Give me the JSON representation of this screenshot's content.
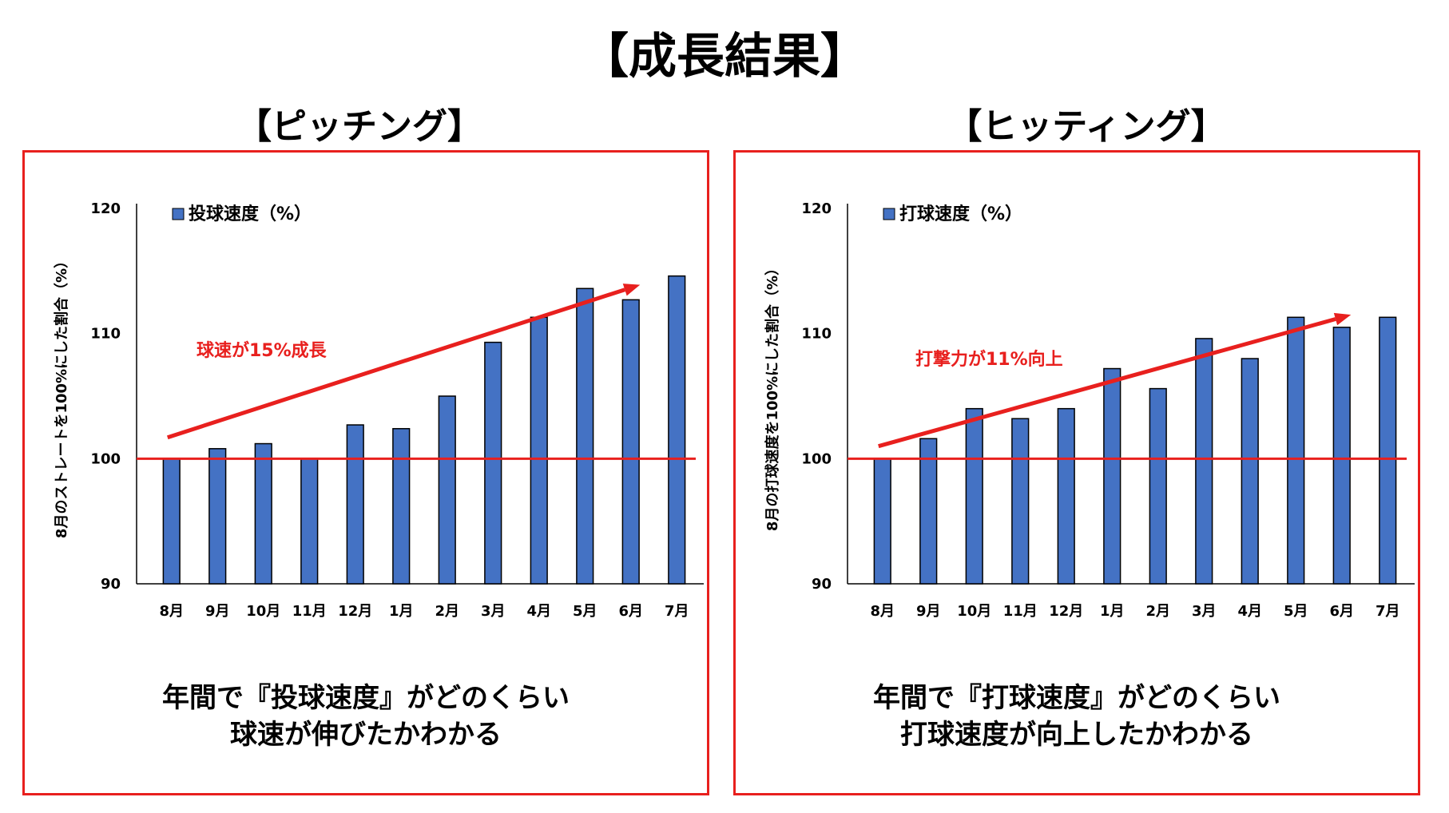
{
  "title": "【成長結果】",
  "sections": [
    {
      "title": "【ピッチング】"
    },
    {
      "title": "【ヒッティング】"
    }
  ],
  "chart_data": [
    {
      "type": "bar",
      "categories": [
        "8月",
        "9月",
        "10月",
        "11月",
        "12月",
        "1月",
        "2月",
        "3月",
        "4月",
        "5月",
        "6月",
        "7月"
      ],
      "series": [
        {
          "name": "投球速度（%）",
          "values": [
            100,
            100.8,
            101.2,
            100,
            102.7,
            102.4,
            105,
            109.3,
            111.3,
            113.6,
            112.7,
            114.6
          ]
        }
      ],
      "ylabel": "8月のストレートを100%にした割合（%）",
      "ylim": [
        90,
        120
      ],
      "yticks": [
        90,
        100,
        110,
        120
      ],
      "reference_line": 100,
      "trend_start": 101.7,
      "trend_end": 113.9,
      "annotation": "球速が15%成長",
      "legend_position": "top-left",
      "grid": false,
      "colors": {
        "bar": "#4472c4",
        "annotation": "#e8201e"
      }
    },
    {
      "type": "bar",
      "categories": [
        "8月",
        "9月",
        "10月",
        "11月",
        "12月",
        "1月",
        "2月",
        "3月",
        "4月",
        "5月",
        "6月",
        "7月"
      ],
      "series": [
        {
          "name": "打球速度（%）",
          "values": [
            100,
            101.6,
            104,
            103.2,
            104,
            107.2,
            105.6,
            109.6,
            108,
            111.3,
            110.5,
            111.3
          ]
        }
      ],
      "ylabel": "8月の打球速度を100%にした割合（%）",
      "ylim": [
        90,
        120
      ],
      "yticks": [
        90,
        100,
        110,
        120
      ],
      "reference_line": 100,
      "trend_start": 101,
      "trend_end": 111.5,
      "annotation": "打撃力が11%向上",
      "legend_position": "top-left",
      "grid": false,
      "colors": {
        "bar": "#4472c4",
        "annotation": "#e8201e"
      }
    }
  ],
  "captions": [
    {
      "line1": "年間で『投球速度』がどのくらい",
      "line2": "球速が伸びたかわかる"
    },
    {
      "line1": "年間で『打球速度』がどのくらい",
      "line2": "打球速度が向上したかわかる"
    }
  ]
}
